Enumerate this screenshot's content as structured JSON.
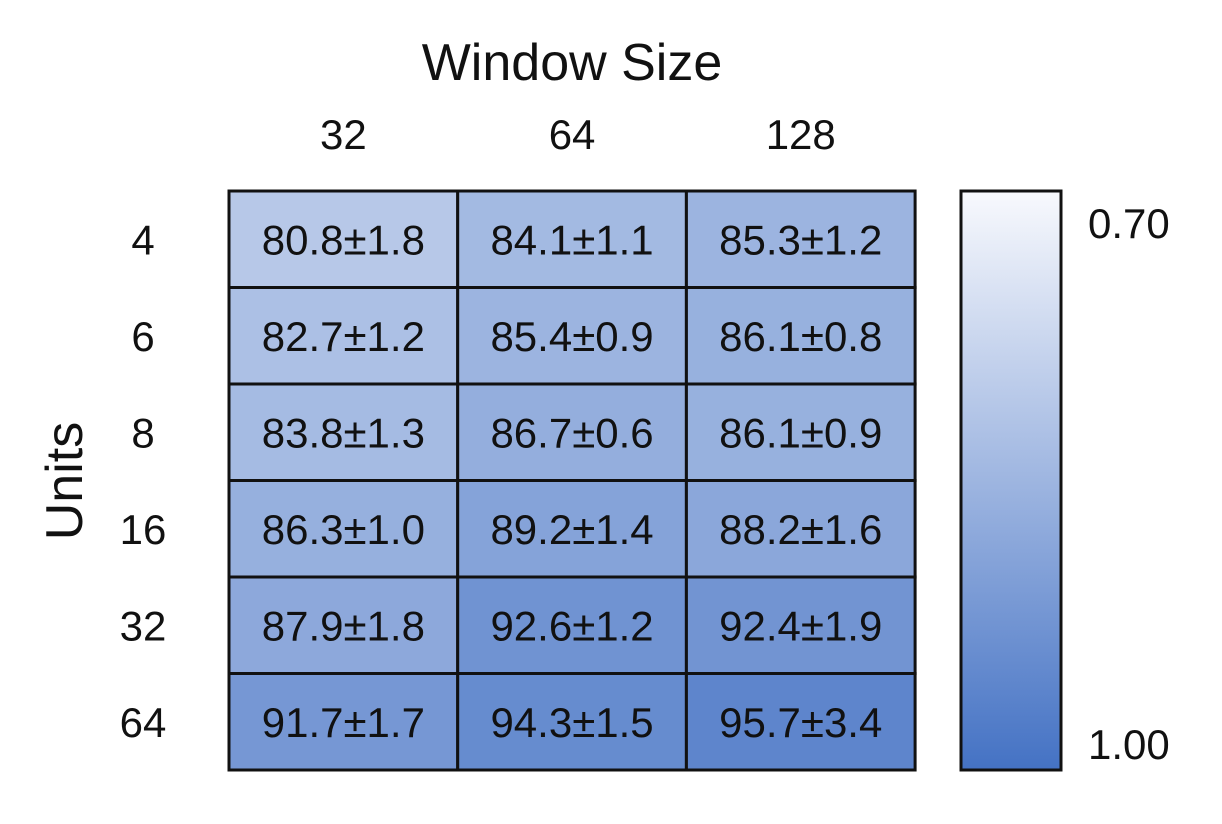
{
  "chart_data": {
    "type": "heatmap",
    "title": "Window Size",
    "xlabel": "Window Size",
    "ylabel": "Units",
    "x_categories": [
      "32",
      "64",
      "128"
    ],
    "y_categories": [
      "4",
      "6",
      "8",
      "16",
      "32",
      "64"
    ],
    "values": [
      [
        80.8,
        84.1,
        85.3
      ],
      [
        82.7,
        85.4,
        86.1
      ],
      [
        83.8,
        86.7,
        86.1
      ],
      [
        86.3,
        89.2,
        88.2
      ],
      [
        87.9,
        92.6,
        92.4
      ],
      [
        91.7,
        94.3,
        95.7
      ]
    ],
    "errors": [
      [
        1.8,
        1.1,
        1.2
      ],
      [
        1.2,
        0.9,
        0.8
      ],
      [
        1.3,
        0.6,
        0.9
      ],
      [
        1.0,
        1.4,
        1.6
      ],
      [
        1.8,
        1.2,
        1.9
      ],
      [
        1.7,
        1.5,
        3.4
      ]
    ],
    "cell_labels": [
      [
        "80.8±1.8",
        "84.1±1.1",
        "85.3±1.2"
      ],
      [
        "82.7±1.2",
        "85.4±0.9",
        "86.1±0.8"
      ],
      [
        "83.8±1.3",
        "86.7±0.6",
        "86.1±0.9"
      ],
      [
        "86.3±1.0",
        "89.2±1.4",
        "88.2±1.6"
      ],
      [
        "87.9±1.8",
        "92.6±1.2",
        "92.4±1.9"
      ],
      [
        "91.7±1.7",
        "94.3±1.5",
        "95.7±3.4"
      ]
    ],
    "colorbar": {
      "min": 0.7,
      "max": 1.0,
      "min_label": "0.70",
      "max_label": "1.00",
      "color_low": "#f8f9fd",
      "color_high": "#4472c4",
      "orientation": "low-at-top"
    },
    "grid": true,
    "legend": "right"
  }
}
